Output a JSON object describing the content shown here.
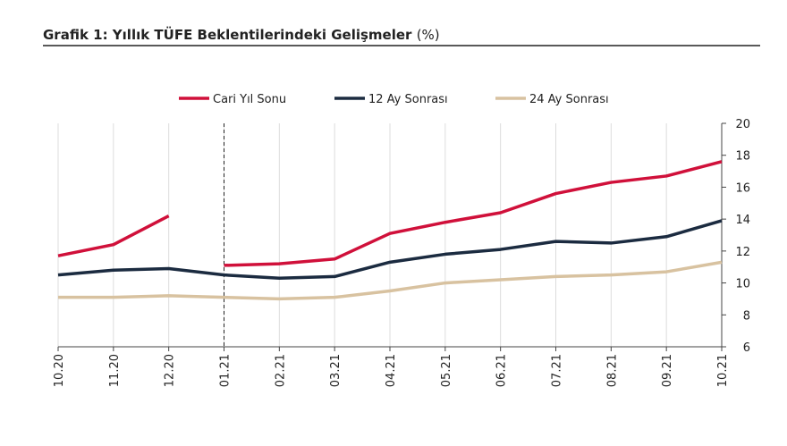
{
  "chart_data": {
    "type": "line",
    "title": "Grafik 1: Yıllık TÜFE Beklentilerindeki Gelişmeler",
    "title_unit": "(%)",
    "categories": [
      "10.20",
      "11.20",
      "12.20",
      "01.21",
      "02.21",
      "03.21",
      "04.21",
      "05.21",
      "06.21",
      "07.21",
      "08.21",
      "09.21",
      "10.21"
    ],
    "series": [
      {
        "name": "Cari Yıl Sonu",
        "color": "#d0103a",
        "segment_break": 3,
        "values": [
          11.7,
          12.4,
          14.2,
          11.1,
          11.2,
          11.5,
          13.1,
          13.8,
          14.4,
          15.6,
          16.3,
          16.7,
          17.6
        ]
      },
      {
        "name": "12 Ay Sonrası",
        "color": "#1b2b40",
        "values": [
          10.5,
          10.8,
          10.9,
          10.5,
          10.3,
          10.4,
          11.3,
          11.8,
          12.1,
          12.6,
          12.5,
          12.9,
          13.9
        ]
      },
      {
        "name": "24 Ay Sonrası",
        "color": "#d8c2a0",
        "values": [
          9.1,
          9.1,
          9.2,
          9.1,
          9.0,
          9.1,
          9.5,
          10.0,
          10.2,
          10.4,
          10.5,
          10.7,
          11.3
        ]
      }
    ],
    "ylim": [
      6,
      20
    ],
    "yticks": [
      6,
      8,
      10,
      12,
      14,
      16,
      18,
      20
    ],
    "vline_category": 3,
    "grid": true,
    "legend": "top"
  }
}
